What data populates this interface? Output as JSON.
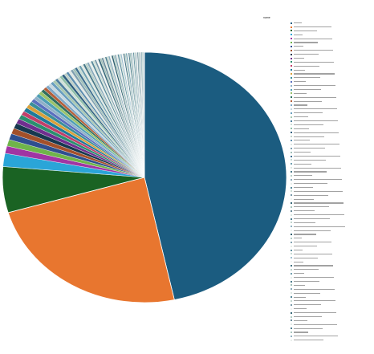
{
  "chart_data": {
    "type": "pie",
    "legend_title": "name",
    "legend_position": "right",
    "note": "",
    "slices": [
      {
        "label": "",
        "value": 44.0,
        "color": "#1b5c80"
      },
      {
        "label": "",
        "value": 22.5,
        "color": "#e8762f"
      },
      {
        "label": "",
        "value": 5.6,
        "color": "#1a6323"
      },
      {
        "label": "",
        "value": 1.6,
        "color": "#2aa5d8"
      },
      {
        "label": "",
        "value": 0.9,
        "color": "#a035a3"
      },
      {
        "label": "",
        "value": 0.8,
        "color": "#6fb54a"
      },
      {
        "label": "",
        "value": 0.75,
        "color": "#2f4f8f"
      },
      {
        "label": "",
        "value": 0.7,
        "color": "#a3502a"
      },
      {
        "label": "",
        "value": 0.65,
        "color": "#17384f"
      },
      {
        "label": "",
        "value": 0.6,
        "color": "#6f2f8f"
      },
      {
        "label": "",
        "value": 0.55,
        "color": "#2a8f6f"
      },
      {
        "label": "",
        "value": 0.5,
        "color": "#c23f6a"
      },
      {
        "label": "",
        "value": 0.5,
        "color": "#1f7a9a"
      },
      {
        "label": "",
        "value": 0.45,
        "color": "#d9a03a"
      },
      {
        "label": "",
        "value": 0.45,
        "color": "#3a8f9a"
      },
      {
        "label": "",
        "value": 0.42,
        "color": "#5a6fbf"
      },
      {
        "label": "",
        "value": 0.4,
        "color": "#8fb0c8"
      },
      {
        "label": "",
        "value": 0.4,
        "color": "#4f9fb5"
      },
      {
        "label": "",
        "value": 0.38,
        "color": "#9ac36a"
      },
      {
        "label": "",
        "value": 0.36,
        "color": "#2f6f5f"
      },
      {
        "label": "",
        "value": 0.35,
        "color": "#b55f3a"
      },
      {
        "label": "",
        "value": 0.34,
        "color": "#7fa8c8"
      },
      {
        "label": "",
        "value": 0.33,
        "color": "#c8d8e0"
      },
      {
        "label": "",
        "value": 0.32,
        "color": "#6a9fbf"
      },
      {
        "label": "",
        "value": 0.31,
        "color": "#a8c8b0"
      },
      {
        "label": "",
        "value": 0.3,
        "color": "#4f7f9f"
      },
      {
        "label": "",
        "value": 0.3,
        "color": "#d0e0d8"
      },
      {
        "label": "",
        "value": 0.29,
        "color": "#8fbfa8"
      },
      {
        "label": "",
        "value": 0.28,
        "color": "#2f5f7f"
      },
      {
        "label": "",
        "value": 0.28,
        "color": "#bfd0c8"
      },
      {
        "label": "",
        "value": 0.27,
        "color": "#5f8faf"
      },
      {
        "label": "",
        "value": 0.27,
        "color": "#e0e8e4"
      },
      {
        "label": "",
        "value": 0.26,
        "color": "#7fa0b0"
      },
      {
        "label": "",
        "value": 0.26,
        "color": "#a0c0b8"
      },
      {
        "label": "",
        "value": 0.25,
        "color": "#3f6f8f"
      },
      {
        "label": "",
        "value": 0.25,
        "color": "#c8dcd4"
      },
      {
        "label": "",
        "value": 0.24,
        "color": "#6f9fb0"
      },
      {
        "label": "",
        "value": 0.24,
        "color": "#dfe8e2"
      },
      {
        "label": "",
        "value": 0.23,
        "color": "#4a7a8a"
      },
      {
        "label": "",
        "value": 0.23,
        "color": "#b8d0c8"
      },
      {
        "label": "",
        "value": 0.22,
        "color": "#8aaabb"
      },
      {
        "label": "",
        "value": 0.22,
        "color": "#e8eeea"
      },
      {
        "label": "",
        "value": 0.21,
        "color": "#5a8a9a"
      },
      {
        "label": "",
        "value": 0.21,
        "color": "#cfe0d8"
      },
      {
        "label": "",
        "value": 0.2,
        "color": "#7a9aaa"
      },
      {
        "label": "",
        "value": 0.2,
        "color": "#f0f4f2"
      },
      {
        "label": "",
        "value": 0.2,
        "color": "#3a6a7a"
      },
      {
        "label": "",
        "value": 0.19,
        "color": "#a8c4bc"
      },
      {
        "label": "",
        "value": 0.19,
        "color": "#6a8a9a"
      },
      {
        "label": "",
        "value": 0.19,
        "color": "#dce8e2"
      },
      {
        "label": "",
        "value": 0.18,
        "color": "#4f7f8f"
      },
      {
        "label": "",
        "value": 0.18,
        "color": "#c0d4cc"
      },
      {
        "label": "",
        "value": 0.18,
        "color": "#8fafbf"
      },
      {
        "label": "",
        "value": 0.17,
        "color": "#eef2f0"
      },
      {
        "label": "",
        "value": 0.17,
        "color": "#2f5f6f"
      },
      {
        "label": "",
        "value": 0.17,
        "color": "#b0ccc4"
      },
      {
        "label": "",
        "value": 0.16,
        "color": "#7fa0af"
      },
      {
        "label": "",
        "value": 0.16,
        "color": "#e4ece8"
      },
      {
        "label": "",
        "value": 0.16,
        "color": "#5f8f9f"
      },
      {
        "label": "",
        "value": 0.15,
        "color": "#c8dcd4"
      },
      {
        "label": "",
        "value": 0.15,
        "color": "#9fbfcf"
      },
      {
        "label": "",
        "value": 0.15,
        "color": "#f4f6f5"
      },
      {
        "label": "",
        "value": 0.14,
        "color": "#3f6f7f"
      },
      {
        "label": "",
        "value": 0.14,
        "color": "#bcd2ca"
      },
      {
        "label": "",
        "value": 0.14,
        "color": "#6f9faf"
      },
      {
        "label": "",
        "value": 0.13,
        "color": "#e8eeeb"
      },
      {
        "label": "",
        "value": 0.13,
        "color": "#4a7a8a"
      },
      {
        "label": "",
        "value": 0.13,
        "color": "#a4c2ba"
      },
      {
        "label": "",
        "value": 0.12,
        "color": "#8aaaba"
      },
      {
        "label": "",
        "value": 0.12,
        "color": "#dde8e3"
      },
      {
        "label": "",
        "value": 0.12,
        "color": "#5a8a9a"
      },
      {
        "label": "",
        "value": 0.11,
        "color": "#c4d8d0"
      },
      {
        "label": "",
        "value": 0.11,
        "color": "#7a9aaa"
      },
      {
        "label": "",
        "value": 0.11,
        "color": "#f0f3f1"
      },
      {
        "label": "",
        "value": 0.1,
        "color": "#3a6a7a"
      },
      {
        "label": "",
        "value": 0.1,
        "color": "#b4cec6"
      },
      {
        "label": "",
        "value": 0.1,
        "color": "#6a8a9a"
      },
      {
        "label": "",
        "value": 0.1,
        "color": "#e2eae6"
      },
      {
        "label": "",
        "value": 0.09,
        "color": "#4f7f8f"
      },
      {
        "label": "",
        "value": 0.09,
        "color": "#a8c6be"
      },
      {
        "label": "",
        "value": 0.09,
        "color": "#8fafbf"
      },
      {
        "label": "",
        "value": 0.09,
        "color": "#eaf0ed"
      }
    ]
  }
}
